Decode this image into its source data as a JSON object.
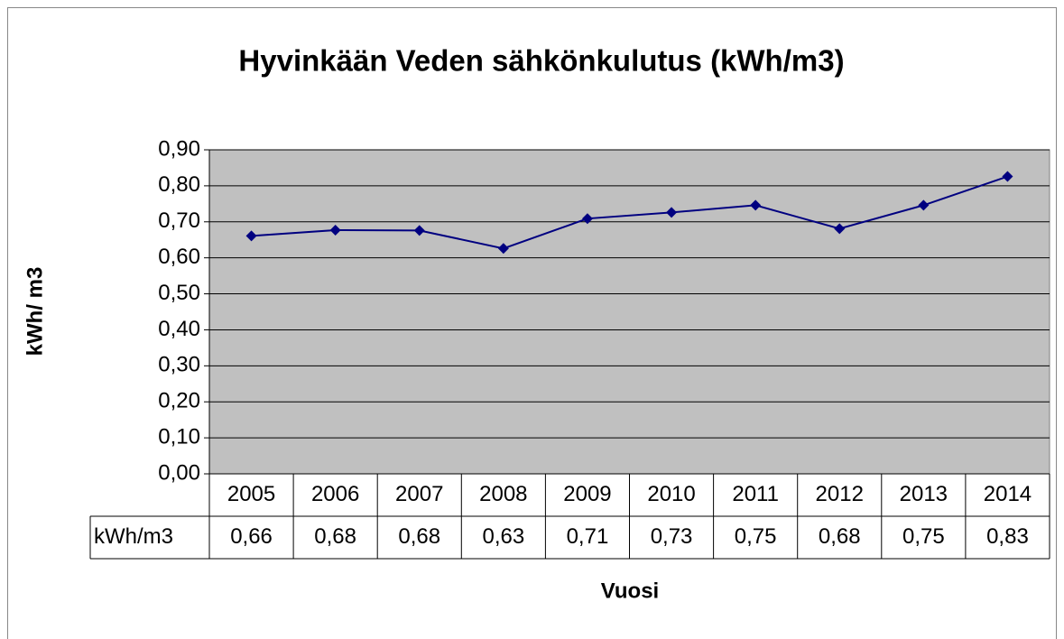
{
  "chart_data": {
    "type": "line",
    "title": "Hyvinkään Veden sähkönkulutus (kWh/m3)",
    "y_label": "kWh/ m3",
    "x_label": "Vuosi",
    "categories": [
      "2005",
      "2006",
      "2007",
      "2008",
      "2009",
      "2010",
      "2011",
      "2012",
      "2013",
      "2014"
    ],
    "series": [
      {
        "name": "kWh/m3",
        "color": "#000080",
        "values": [
          0.661,
          0.677,
          0.676,
          0.626,
          0.709,
          0.726,
          0.746,
          0.681,
          0.746,
          0.826
        ],
        "value_labels": [
          "0,66",
          "0,68",
          "0,68",
          "0,63",
          "0,71",
          "0,73",
          "0,75",
          "0,68",
          "0,75",
          "0,83"
        ]
      }
    ],
    "ylim": [
      0,
      0.9
    ],
    "yticks": [
      {
        "value": 0,
        "label": "0,00"
      },
      {
        "value": 0.1,
        "label": "0,10"
      },
      {
        "value": 0.2,
        "label": "0,20"
      },
      {
        "value": 0.3,
        "label": "0,30"
      },
      {
        "value": 0.4,
        "label": "0,40"
      },
      {
        "value": 0.5,
        "label": "0,50"
      },
      {
        "value": 0.6,
        "label": "0,60"
      },
      {
        "value": 0.7,
        "label": "0,70"
      },
      {
        "value": 0.8,
        "label": "0,80"
      },
      {
        "value": 0.9,
        "label": "0,90"
      }
    ],
    "grid": true,
    "plot_background": "#c0c0c0"
  }
}
